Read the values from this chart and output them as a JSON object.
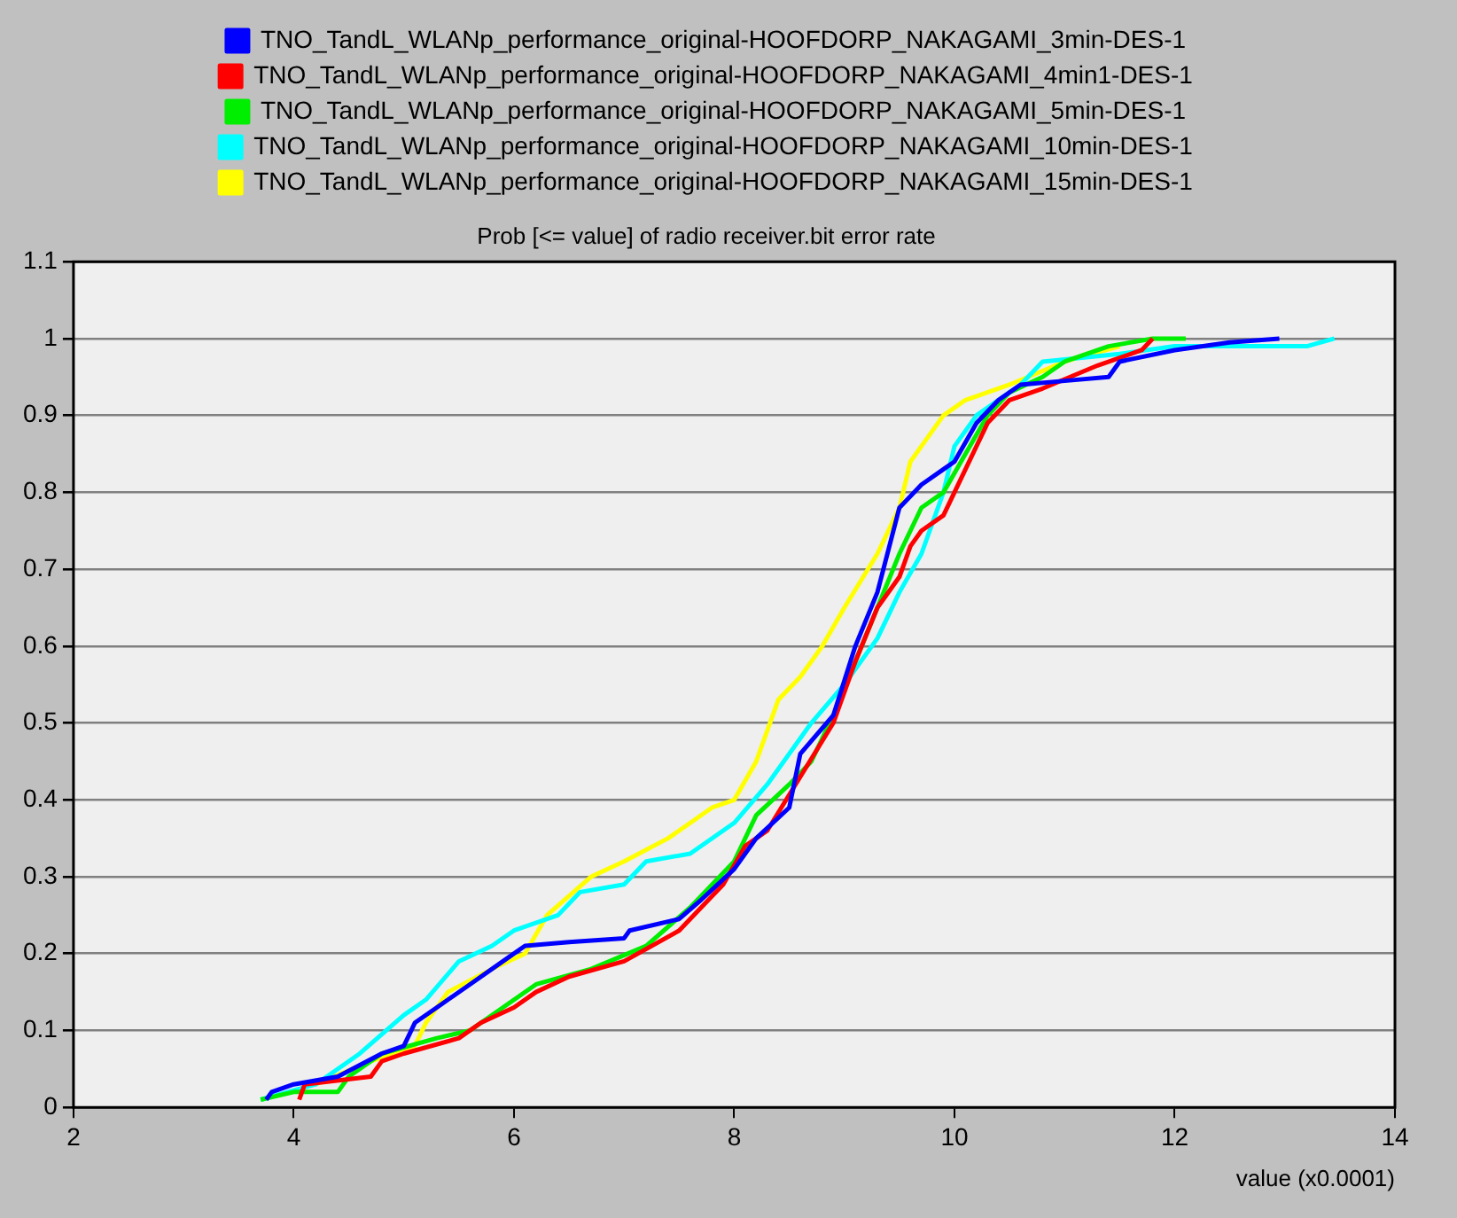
{
  "chart_data": {
    "type": "line",
    "title": "Prob [<= value] of radio receiver.bit error rate",
    "xlabel": "value (x0.0001)",
    "xlim": [
      2,
      14
    ],
    "xticks": [
      2,
      4,
      6,
      8,
      10,
      12,
      14
    ],
    "ylim": [
      0,
      1.1
    ],
    "yticks": [
      0,
      0.1,
      0.2,
      0.3,
      0.4,
      0.5,
      0.6,
      0.7,
      0.8,
      0.9,
      1,
      1.1
    ],
    "grid": "y",
    "legend": "top",
    "marker": "none",
    "line_style": "solid",
    "series": [
      {
        "name": "TNO_TandL_WLANp_performance_original-HOOFDORP_NAKAGAMI_3min-DES-1",
        "color": "#0000ff",
        "x": [
          3.75,
          3.8,
          4.0,
          4.4,
          4.8,
          5.0,
          5.1,
          5.3,
          5.6,
          5.9,
          6.1,
          6.5,
          7.0,
          7.05,
          7.5,
          7.7,
          8.0,
          8.2,
          8.5,
          8.6,
          8.9,
          9.1,
          9.3,
          9.5,
          9.7,
          9.9,
          10.0,
          10.2,
          10.4,
          10.6,
          11.0,
          11.4,
          11.5,
          12.0,
          12.5,
          12.95
        ],
        "values": [
          0.01,
          0.02,
          0.03,
          0.04,
          0.07,
          0.08,
          0.11,
          0.13,
          0.16,
          0.19,
          0.21,
          0.215,
          0.22,
          0.23,
          0.245,
          0.27,
          0.31,
          0.35,
          0.39,
          0.46,
          0.51,
          0.6,
          0.67,
          0.78,
          0.81,
          0.83,
          0.84,
          0.89,
          0.92,
          0.94,
          0.945,
          0.95,
          0.97,
          0.985,
          0.995,
          1.0
        ]
      },
      {
        "name": "TNO_TandL_WLANp_performance_original-HOOFDORP_NAKAGAMI_4min1-DES-1",
        "color": "#ff0000",
        "x": [
          4.05,
          4.1,
          4.7,
          4.8,
          5.0,
          5.5,
          5.7,
          6.0,
          6.2,
          6.5,
          7.0,
          7.5,
          7.9,
          8.1,
          8.3,
          8.6,
          8.9,
          9.1,
          9.3,
          9.5,
          9.6,
          9.7,
          9.9,
          10.1,
          10.3,
          10.5,
          10.8,
          11.3,
          11.7,
          11.8
        ],
        "values": [
          0.01,
          0.03,
          0.04,
          0.06,
          0.07,
          0.09,
          0.11,
          0.13,
          0.15,
          0.17,
          0.19,
          0.23,
          0.29,
          0.34,
          0.36,
          0.43,
          0.5,
          0.58,
          0.65,
          0.69,
          0.73,
          0.75,
          0.77,
          0.83,
          0.89,
          0.92,
          0.935,
          0.965,
          0.985,
          1.0
        ]
      },
      {
        "name": "TNO_TandL_WLANp_performance_original-HOOFDORP_NAKAGAMI_5min-DES-1",
        "color": "#00ee00",
        "x": [
          3.7,
          4.0,
          4.4,
          4.5,
          4.8,
          5.3,
          5.6,
          5.9,
          6.2,
          6.7,
          7.2,
          7.6,
          8.0,
          8.2,
          8.5,
          8.7,
          8.9,
          9.1,
          9.3,
          9.5,
          9.7,
          9.9,
          10.1,
          10.3,
          10.5,
          10.8,
          11.0,
          11.4,
          11.8,
          12.1
        ],
        "values": [
          0.01,
          0.02,
          0.02,
          0.04,
          0.07,
          0.09,
          0.1,
          0.13,
          0.16,
          0.18,
          0.21,
          0.26,
          0.32,
          0.38,
          0.42,
          0.45,
          0.51,
          0.58,
          0.65,
          0.72,
          0.78,
          0.8,
          0.85,
          0.9,
          0.93,
          0.95,
          0.97,
          0.99,
          1.0,
          1.0
        ]
      },
      {
        "name": "TNO_TandL_WLANp_performance_original-HOOFDORP_NAKAGAMI_10min-DES-1",
        "color": "#00ffff",
        "x": [
          3.7,
          4.2,
          4.6,
          5.0,
          5.2,
          5.5,
          5.8,
          6.0,
          6.4,
          6.6,
          7.0,
          7.2,
          7.6,
          8.0,
          8.3,
          8.5,
          8.7,
          9.0,
          9.3,
          9.5,
          9.7,
          9.9,
          10.0,
          10.2,
          10.6,
          10.8,
          11.5,
          12.0,
          13.2,
          13.45
        ],
        "values": [
          0.01,
          0.03,
          0.07,
          0.12,
          0.14,
          0.19,
          0.21,
          0.23,
          0.25,
          0.28,
          0.29,
          0.32,
          0.33,
          0.37,
          0.42,
          0.46,
          0.5,
          0.55,
          0.61,
          0.67,
          0.72,
          0.8,
          0.86,
          0.9,
          0.94,
          0.97,
          0.98,
          0.99,
          0.99,
          1.0
        ]
      },
      {
        "name": "TNO_TandL_WLANp_performance_original-HOOFDORP_NAKAGAMI_15min-DES-1",
        "color": "#ffff00",
        "x": [
          4.2,
          4.7,
          5.1,
          5.2,
          5.4,
          5.8,
          6.1,
          6.3,
          6.7,
          7.0,
          7.4,
          7.8,
          8.0,
          8.2,
          8.4,
          8.6,
          8.8,
          9.0,
          9.3,
          9.5,
          9.6,
          9.7,
          9.9,
          10.1,
          10.5,
          11.0,
          11.5
        ],
        "values": [
          0.03,
          0.06,
          0.08,
          0.11,
          0.15,
          0.18,
          0.2,
          0.25,
          0.3,
          0.32,
          0.35,
          0.39,
          0.4,
          0.45,
          0.53,
          0.56,
          0.6,
          0.65,
          0.72,
          0.78,
          0.84,
          0.86,
          0.9,
          0.92,
          0.94,
          0.97,
          0.99
        ]
      }
    ]
  }
}
